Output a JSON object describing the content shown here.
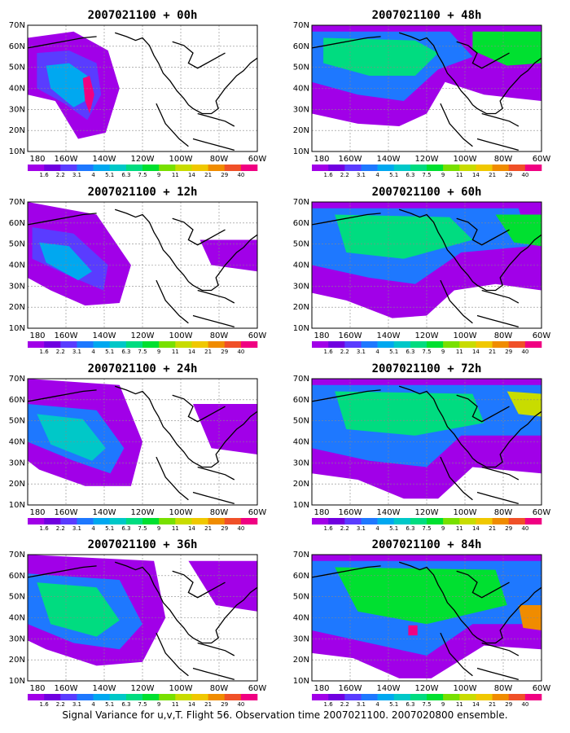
{
  "panels": [
    {
      "title": "2007021100 + 00h",
      "hour": 0
    },
    {
      "title": "2007021100 + 48h",
      "hour": 48
    },
    {
      "title": "2007021100 + 12h",
      "hour": 12
    },
    {
      "title": "2007021100 + 60h",
      "hour": 60
    },
    {
      "title": "2007021100 + 24h",
      "hour": 24
    },
    {
      "title": "2007021100 + 72h",
      "hour": 72
    },
    {
      "title": "2007021100 + 36h",
      "hour": 36
    },
    {
      "title": "2007021100 + 84h",
      "hour": 84
    }
  ],
  "axes": {
    "lat_labels": [
      "70N",
      "60N",
      "50N",
      "40N",
      "30N",
      "20N",
      "10N"
    ],
    "lon_labels": [
      "180",
      "160W",
      "140W",
      "120W",
      "100W",
      "80W",
      "60W"
    ]
  },
  "colorbar": {
    "labels": [
      "1.6",
      "2.2",
      "3.1",
      "4",
      "5.1",
      "6.3",
      "7.5",
      "9",
      "11",
      "14",
      "21",
      "29",
      "40"
    ],
    "colors": [
      "#a100e8",
      "#7000e0",
      "#5a3cff",
      "#1e78ff",
      "#00a8f0",
      "#00c8c8",
      "#00dc80",
      "#00e030",
      "#78e000",
      "#c8dc00",
      "#f0c800",
      "#f08c00",
      "#f05028",
      "#f00082"
    ]
  },
  "caption": "Signal Variance for u,v,T. Flight 56. Observation time 2007021100. 2007020800 ensemble."
}
